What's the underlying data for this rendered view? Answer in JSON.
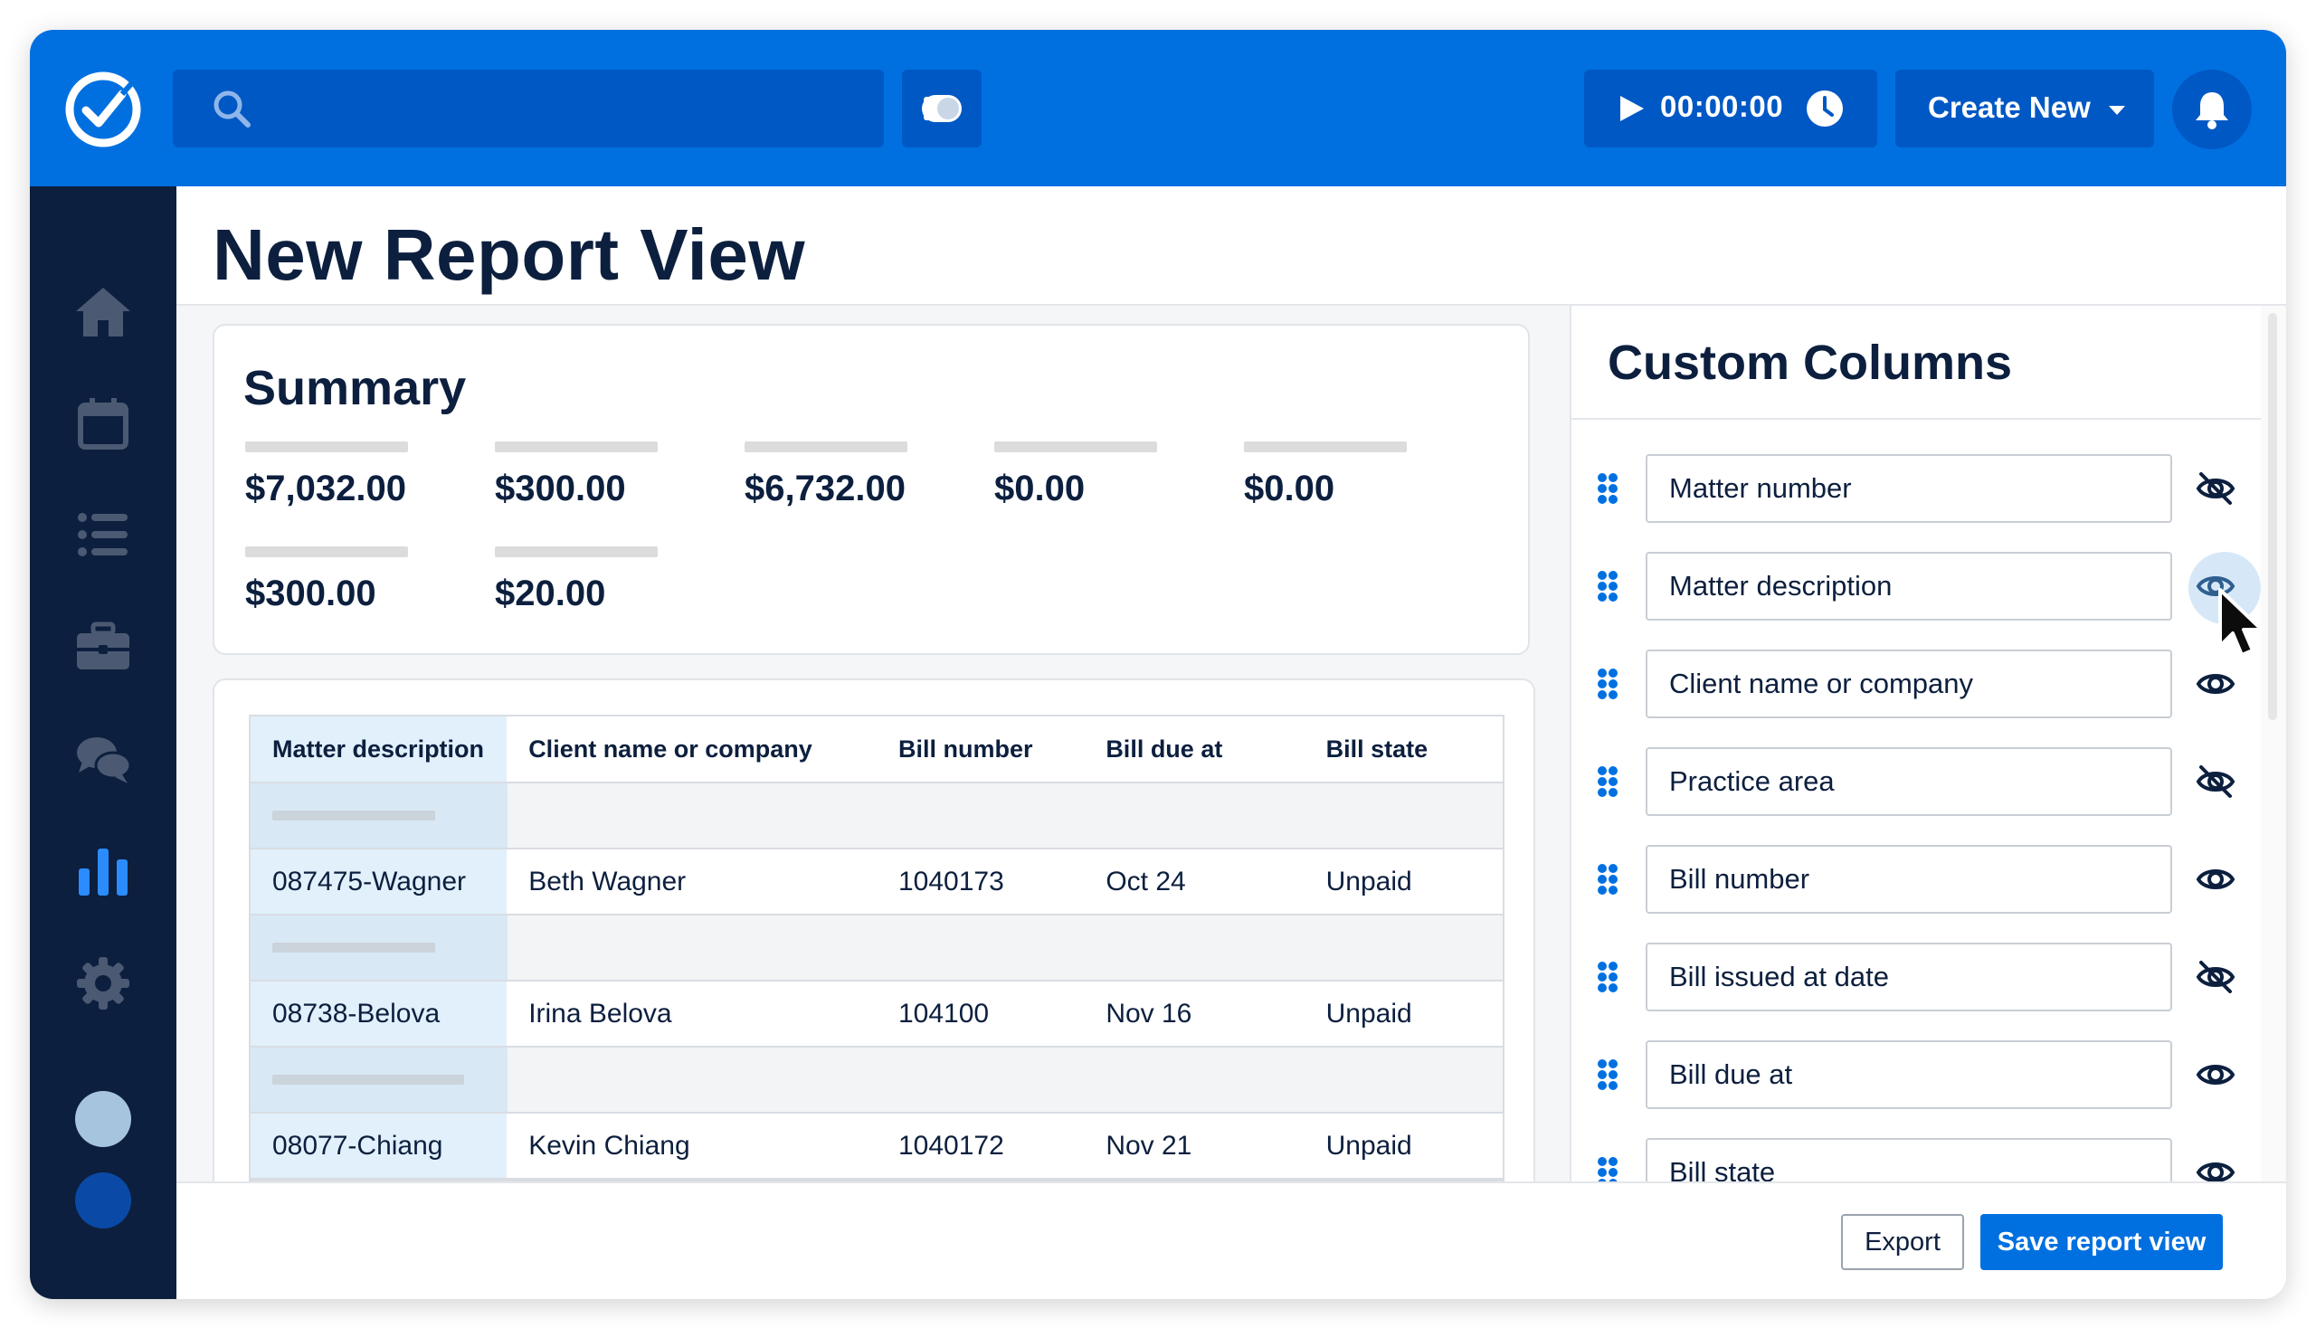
{
  "topbar": {
    "timer_value": "00:00:00",
    "create_label": "Create New"
  },
  "page": {
    "title": "New Report View"
  },
  "summary": {
    "title": "Summary",
    "metrics": [
      "$7,032.00",
      "$300.00",
      "$6,732.00",
      "$0.00",
      "$0.00",
      "$300.00",
      "$20.00"
    ]
  },
  "table": {
    "headers": [
      "Matter description",
      "Client name or company",
      "Bill number",
      "Bill due at",
      "Bill state"
    ],
    "rows": [
      [
        "087475-Wagner",
        "Beth Wagner",
        "1040173",
        "Oct 24",
        "Unpaid"
      ],
      [
        "08738-Belova",
        "Irina Belova",
        "104100",
        "Nov 16",
        "Unpaid"
      ],
      [
        "08077-Chiang",
        "Kevin Chiang",
        "1040172",
        "Nov 21",
        "Unpaid"
      ]
    ]
  },
  "custom_columns": {
    "title": "Custom Columns",
    "items": [
      {
        "label": "Matter number",
        "visibility_icon": "eye-slash-icon"
      },
      {
        "label": "Matter description",
        "visibility_icon": "eye-icon"
      },
      {
        "label": "Client name or company",
        "visibility_icon": "eye-icon"
      },
      {
        "label": "Practice area",
        "visibility_icon": "eye-slash-icon"
      },
      {
        "label": "Bill number",
        "visibility_icon": "eye-icon"
      },
      {
        "label": "Bill issued at date",
        "visibility_icon": "eye-slash-icon"
      },
      {
        "label": "Bill due at",
        "visibility_icon": "eye-icon"
      },
      {
        "label": "Bill state",
        "visibility_icon": "eye-icon"
      }
    ]
  },
  "footer": {
    "export_label": "Export",
    "save_label": "Save report view"
  },
  "colors": {
    "brand_blue": "#0070e0",
    "sidebar_navy": "#0c1f3e",
    "active_nav": "#2a8cff"
  }
}
